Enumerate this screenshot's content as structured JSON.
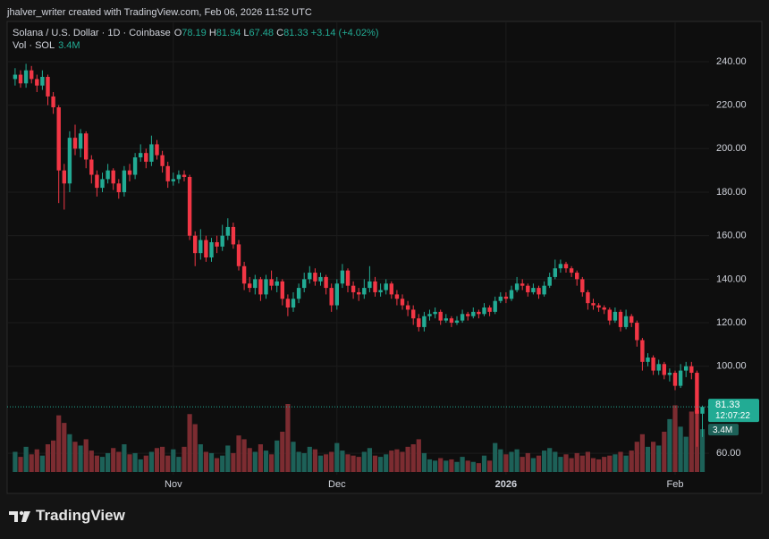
{
  "header": {
    "attribution": "jhalver_writer created with TradingView.com, Feb 06, 2026 11:52 UTC"
  },
  "footer": {
    "brand": "TradingView"
  },
  "chart_data": {
    "type": "candlestick",
    "title": "Solana / U.S. Dollar · 1D · Coinbase",
    "ohlc_letters": [
      "O",
      "H",
      "L",
      "C"
    ],
    "change_label": "+3.14 (+4.02%)",
    "countdown": "12:07:22",
    "categories": [
      null,
      null,
      null,
      null,
      null,
      null,
      null,
      null,
      null,
      null,
      null,
      null,
      null,
      null,
      null,
      null,
      null,
      null,
      null,
      null,
      null,
      null,
      null,
      null,
      null,
      null,
      null,
      null,
      null,
      "Nov",
      null,
      null,
      null,
      null,
      null,
      null,
      null,
      null,
      null,
      null,
      null,
      null,
      null,
      null,
      null,
      null,
      null,
      null,
      null,
      null,
      null,
      null,
      null,
      null,
      null,
      null,
      null,
      null,
      null,
      "Dec",
      null,
      null,
      null,
      null,
      null,
      null,
      null,
      null,
      null,
      null,
      null,
      null,
      null,
      null,
      null,
      null,
      null,
      null,
      null,
      null,
      null,
      null,
      null,
      null,
      null,
      null,
      null,
      null,
      null,
      null,
      "2026",
      null,
      null,
      null,
      null,
      null,
      null,
      null,
      null,
      null,
      null,
      null,
      null,
      null,
      null,
      null,
      null,
      null,
      null,
      null,
      null,
      null,
      null,
      null,
      null,
      null,
      null,
      null,
      null,
      null,
      null,
      "Feb",
      null,
      null,
      null,
      null,
      null
    ],
    "open": [
      232,
      234,
      230,
      236,
      232,
      229,
      233,
      224,
      219,
      190,
      184,
      205,
      200,
      207,
      195,
      188,
      182,
      186,
      190,
      184,
      180,
      190,
      188,
      196,
      198,
      194,
      202,
      197,
      192,
      185,
      186,
      188,
      187,
      160,
      152,
      158,
      150,
      157,
      155,
      160,
      164,
      156,
      146,
      138,
      136,
      140,
      133,
      140,
      137,
      139,
      131,
      127,
      131,
      136,
      140,
      143,
      139,
      141,
      136,
      128,
      138,
      144,
      137,
      134,
      133,
      136,
      139,
      134,
      135,
      138,
      133,
      131,
      128,
      126,
      122,
      118,
      123,
      124,
      125,
      121,
      122,
      120,
      121,
      124,
      123,
      125,
      124,
      127,
      125,
      130,
      132,
      131,
      135,
      138,
      137,
      134,
      136,
      133,
      137,
      141,
      145,
      147,
      145,
      143,
      140,
      134,
      129,
      128,
      127,
      126,
      121,
      125,
      118,
      123,
      120,
      112,
      102,
      104,
      98,
      101,
      96,
      97,
      91,
      98,
      100,
      97,
      78.19
    ],
    "high": [
      237,
      236,
      239,
      238,
      234,
      236,
      234,
      226,
      220,
      193,
      208,
      211,
      209,
      208,
      197,
      190,
      189,
      193,
      191,
      186,
      192,
      193,
      198,
      202,
      200,
      206,
      204,
      199,
      194,
      189,
      190,
      190,
      188,
      162,
      163,
      160,
      159,
      160,
      165,
      168,
      166,
      158,
      148,
      141,
      142,
      141,
      142,
      144,
      141,
      140,
      133,
      134,
      138,
      143,
      146,
      145,
      143,
      142,
      138,
      140,
      147,
      145,
      139,
      136,
      140,
      146,
      141,
      138,
      140,
      139,
      135,
      133,
      130,
      128,
      124,
      125,
      126,
      127,
      126,
      124,
      123,
      123,
      126,
      125,
      127,
      126,
      129,
      128,
      132,
      134,
      134,
      137,
      141,
      140,
      138,
      138,
      137,
      139,
      143,
      149,
      149,
      148,
      146,
      144,
      141,
      135,
      131,
      129,
      128,
      127,
      127,
      126,
      126,
      124,
      121,
      113,
      106,
      105,
      103,
      102,
      99,
      98,
      101,
      102,
      102,
      98,
      81.94
    ],
    "low": [
      229,
      228,
      228,
      230,
      226,
      227,
      220,
      216,
      175,
      172,
      180,
      197,
      196,
      191,
      184,
      178,
      180,
      184,
      181,
      177,
      178,
      185,
      186,
      194,
      191,
      192,
      195,
      189,
      182,
      183,
      184,
      185,
      158,
      146,
      149,
      148,
      148,
      152,
      153,
      158,
      154,
      144,
      135,
      134,
      133,
      130,
      131,
      135,
      134,
      128,
      123,
      125,
      129,
      134,
      138,
      137,
      137,
      133,
      125,
      126,
      136,
      134,
      131,
      130,
      131,
      134,
      132,
      132,
      133,
      131,
      128,
      126,
      123,
      119,
      116,
      116,
      121,
      122,
      119,
      120,
      118,
      119,
      120,
      121,
      122,
      122,
      123,
      123,
      124,
      129,
      129,
      130,
      134,
      135,
      132,
      133,
      131,
      132,
      136,
      140,
      143,
      143,
      141,
      137,
      132,
      126,
      126,
      125,
      124,
      119,
      120,
      116,
      117,
      118,
      109,
      98,
      100,
      96,
      96,
      94,
      93,
      89,
      90,
      95,
      94,
      63,
      67.48
    ],
    "close": [
      234,
      230,
      236,
      232,
      229,
      233,
      224,
      219,
      190,
      184,
      205,
      200,
      207,
      195,
      188,
      182,
      186,
      190,
      184,
      180,
      190,
      188,
      196,
      198,
      194,
      202,
      197,
      192,
      185,
      186,
      188,
      187,
      160,
      152,
      158,
      150,
      157,
      155,
      160,
      164,
      156,
      146,
      138,
      136,
      140,
      133,
      140,
      137,
      139,
      131,
      127,
      131,
      136,
      140,
      143,
      139,
      141,
      136,
      128,
      138,
      144,
      137,
      134,
      133,
      136,
      139,
      134,
      135,
      138,
      133,
      131,
      128,
      126,
      122,
      118,
      123,
      124,
      125,
      121,
      122,
      120,
      121,
      124,
      123,
      125,
      124,
      127,
      125,
      130,
      132,
      131,
      135,
      138,
      137,
      134,
      136,
      133,
      137,
      141,
      145,
      147,
      145,
      143,
      140,
      134,
      129,
      128,
      127,
      126,
      121,
      125,
      118,
      123,
      120,
      112,
      102,
      104,
      98,
      101,
      96,
      97,
      91,
      98,
      100,
      97,
      78.19,
      81.33
    ],
    "volume": {
      "name": "Vol · SOL",
      "last_label": "3.4M",
      "values": [
        1.6,
        1.2,
        2.0,
        1.4,
        1.8,
        1.3,
        2.2,
        2.5,
        4.5,
        3.9,
        3.0,
        2.4,
        2.1,
        2.6,
        1.7,
        1.3,
        1.2,
        1.5,
        1.9,
        1.6,
        2.2,
        1.4,
        1.5,
        1.0,
        1.3,
        1.6,
        1.9,
        2.0,
        1.3,
        1.8,
        1.2,
        2.0,
        4.6,
        3.8,
        2.2,
        1.6,
        1.5,
        1.1,
        1.3,
        2.1,
        1.5,
        2.9,
        2.6,
        1.9,
        1.6,
        2.2,
        1.7,
        1.4,
        2.5,
        3.2,
        5.4,
        2.4,
        1.6,
        1.5,
        2.0,
        1.8,
        1.3,
        1.4,
        1.6,
        2.3,
        1.7,
        1.4,
        1.3,
        1.2,
        1.6,
        1.9,
        1.3,
        1.2,
        1.4,
        1.7,
        1.8,
        1.6,
        2.0,
        2.2,
        2.6,
        1.5,
        1.0,
        0.9,
        1.1,
        0.9,
        1.0,
        0.8,
        1.2,
        0.9,
        0.8,
        0.7,
        1.3,
        0.9,
        2.3,
        1.8,
        1.4,
        1.6,
        1.8,
        1.2,
        1.5,
        1.1,
        1.3,
        1.7,
        1.9,
        1.6,
        1.2,
        1.4,
        1.1,
        1.5,
        1.3,
        1.6,
        1.1,
        1.0,
        1.2,
        1.3,
        1.4,
        1.6,
        1.3,
        1.7,
        2.4,
        3.0,
        2.0,
        2.4,
        2.1,
        3.2,
        4.2,
        5.3,
        3.6,
        2.8,
        4.8,
        4.9,
        3.4
      ]
    },
    "colors": {
      "up": "#22ab94",
      "down": "#f23645",
      "volume_up": "#1d6158",
      "volume_down": "#7c2c31"
    },
    "ylim": [
      51,
      256
    ],
    "yticks": [
      {
        "value": 60,
        "label": "60.00"
      },
      {
        "value": 100,
        "label": "100.00"
      },
      {
        "value": 120,
        "label": "120.00"
      },
      {
        "value": 140,
        "label": "140.00"
      },
      {
        "value": 160,
        "label": "160.00"
      },
      {
        "value": 180,
        "label": "180.00"
      },
      {
        "value": 200,
        "label": "200.00"
      },
      {
        "value": 220,
        "label": "220.00"
      },
      {
        "value": 240,
        "label": "240.00"
      }
    ],
    "grid": true,
    "last_price_line": true
  }
}
